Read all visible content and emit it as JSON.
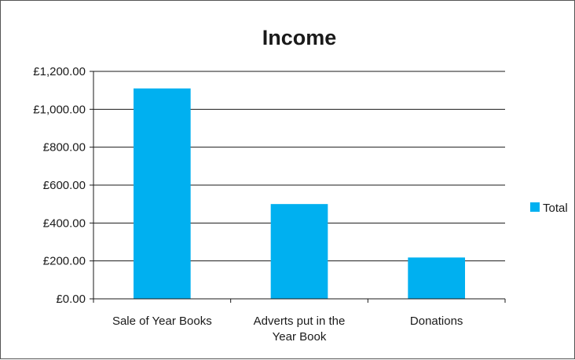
{
  "chart_data": {
    "type": "bar",
    "title": "Income",
    "categories": [
      "Sale of Year Books",
      "Adverts put in the Year Book",
      "Donations"
    ],
    "series": [
      {
        "name": "Total",
        "values": [
          1110,
          500,
          218
        ],
        "color": "#00b0f0"
      }
    ],
    "ylim": [
      0,
      1200
    ],
    "yticks": [
      0,
      200,
      400,
      600,
      800,
      1000,
      1200
    ],
    "ytick_labels": [
      "£0.00",
      "£200.00",
      "£400.00",
      "£600.00",
      "£800.00",
      "£1,000.00",
      "£1,200.00"
    ],
    "grid": true,
    "legend": "right",
    "xlabel": "",
    "ylabel": ""
  }
}
